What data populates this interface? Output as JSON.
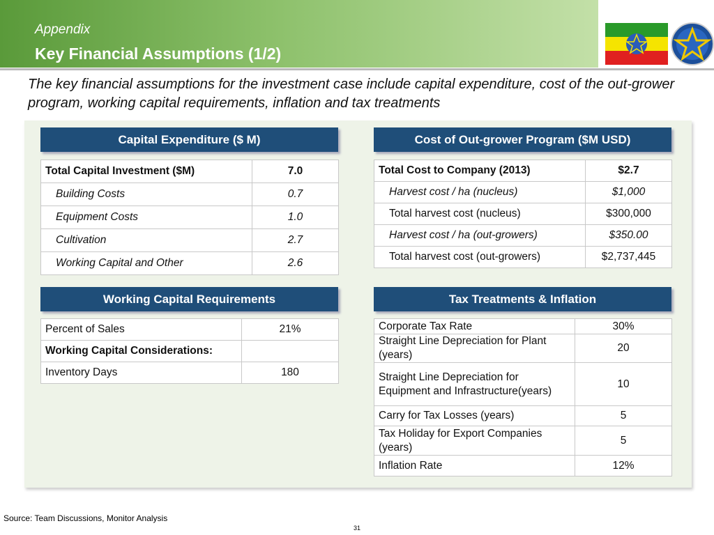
{
  "header": {
    "kicker": "Appendix",
    "title": "Key Financial Assumptions (1/2)"
  },
  "subtitle": "The key financial assumptions for the investment case include capital expenditure, cost of the out-grower program, working capital requirements, inflation and tax treatments",
  "capex": {
    "title": "Capital Expenditure ($ M)",
    "rows": [
      [
        "Total Capital Investment ($M)",
        "7.0"
      ],
      [
        "Building Costs",
        "0.7"
      ],
      [
        "Equipment Costs",
        "1.0"
      ],
      [
        "Cultivation",
        "2.7"
      ],
      [
        "Working Capital and Other",
        "2.6"
      ]
    ]
  },
  "outgrower": {
    "title": "Cost of Out-grower Program ($M USD)",
    "rows": [
      [
        "Total Cost to Company (2013)",
        "$2.7"
      ],
      [
        "Harvest cost / ha (nucleus)",
        "$1,000"
      ],
      [
        "Total harvest cost (nucleus)",
        "$300,000"
      ],
      [
        "Harvest cost / ha (out-growers)",
        "$350.00"
      ],
      [
        "Total harvest cost (out-growers)",
        "$2,737,445"
      ]
    ]
  },
  "working_capital": {
    "title": "Working Capital Requirements",
    "rows": [
      [
        "Percent of Sales",
        "21%"
      ],
      [
        "Working Capital Considerations:",
        null
      ],
      [
        "Inventory Days",
        "180"
      ]
    ]
  },
  "tax": {
    "title": "Tax Treatments & Inflation",
    "rows": [
      [
        "Corporate Tax Rate",
        "30%"
      ],
      [
        "Straight Line Depreciation for Plant (years)",
        "20"
      ],
      [
        "Straight Line Depreciation for Equipment and Infrastructure(years)",
        "10"
      ],
      [
        "Carry for Tax Losses (years)",
        "5"
      ],
      [
        "Tax Holiday for Export Companies (years)",
        "5"
      ],
      [
        "Inflation Rate",
        "12%"
      ]
    ]
  },
  "footer": {
    "source": "Source: Team Discussions, Monitor Analysis",
    "page": "31"
  }
}
